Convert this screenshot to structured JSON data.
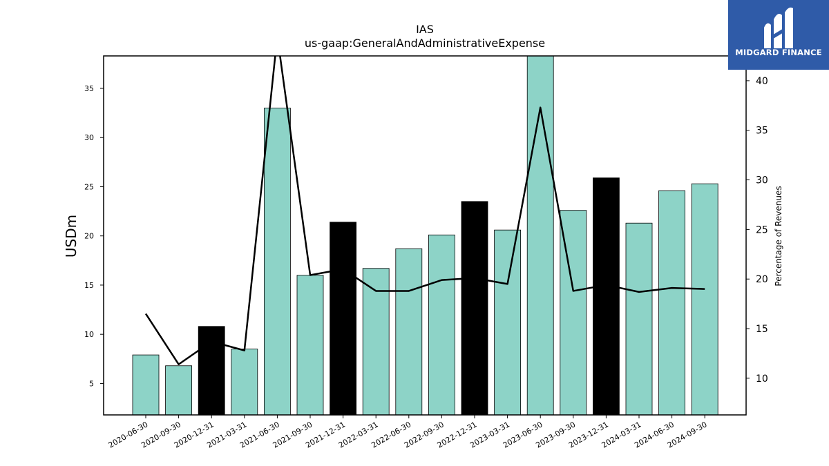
{
  "chart_data": {
    "type": "bar",
    "title": "IAS",
    "subtitle": "us-gaap:GeneralAndAdministrativeExpense",
    "ylabel": "USDm",
    "y2label": "Percentage of Revenues",
    "ylim": [
      1.8,
      38.3
    ],
    "y2lim": [
      6.3,
      42.5
    ],
    "yticks": [
      5,
      10,
      15,
      20,
      25,
      30,
      35
    ],
    "y2ticks": [
      10,
      15,
      20,
      25,
      30,
      35,
      40
    ],
    "categories": [
      "2020-06-30",
      "2020-09-30",
      "2020-12-31",
      "2021-03-31",
      "2021-06-30",
      "2021-09-30",
      "2021-12-31",
      "2022-03-31",
      "2022-06-30",
      "2022-09-30",
      "2022-12-31",
      "2023-03-31",
      "2023-06-30",
      "2023-09-30",
      "2023-12-31",
      "2024-03-31",
      "2024-06-30",
      "2024-09-30"
    ],
    "values": [
      7.9,
      6.8,
      10.8,
      8.5,
      33.0,
      16.0,
      21.4,
      16.7,
      18.7,
      20.1,
      23.5,
      20.6,
      38.8,
      22.6,
      25.9,
      21.3,
      24.6,
      25.3
    ],
    "bar_colors": [
      "#8dd3c7",
      "#8dd3c7",
      "#000000",
      "#8dd3c7",
      "#8dd3c7",
      "#8dd3c7",
      "#000000",
      "#8dd3c7",
      "#8dd3c7",
      "#8dd3c7",
      "#000000",
      "#8dd3c7",
      "#8dd3c7",
      "#8dd3c7",
      "#000000",
      "#8dd3c7",
      "#8dd3c7",
      "#8dd3c7"
    ],
    "line_values": [
      16.5,
      11.4,
      13.7,
      12.8,
      44.5,
      20.4,
      21.0,
      18.8,
      18.8,
      19.9,
      20.1,
      19.5,
      37.3,
      18.8,
      19.4,
      18.7,
      19.1,
      19.0
    ],
    "line_color": "#000000",
    "grid": false,
    "legend": "none"
  },
  "logo": {
    "text": "MIDGARD FINANCE",
    "background": "#2f5ba8"
  }
}
